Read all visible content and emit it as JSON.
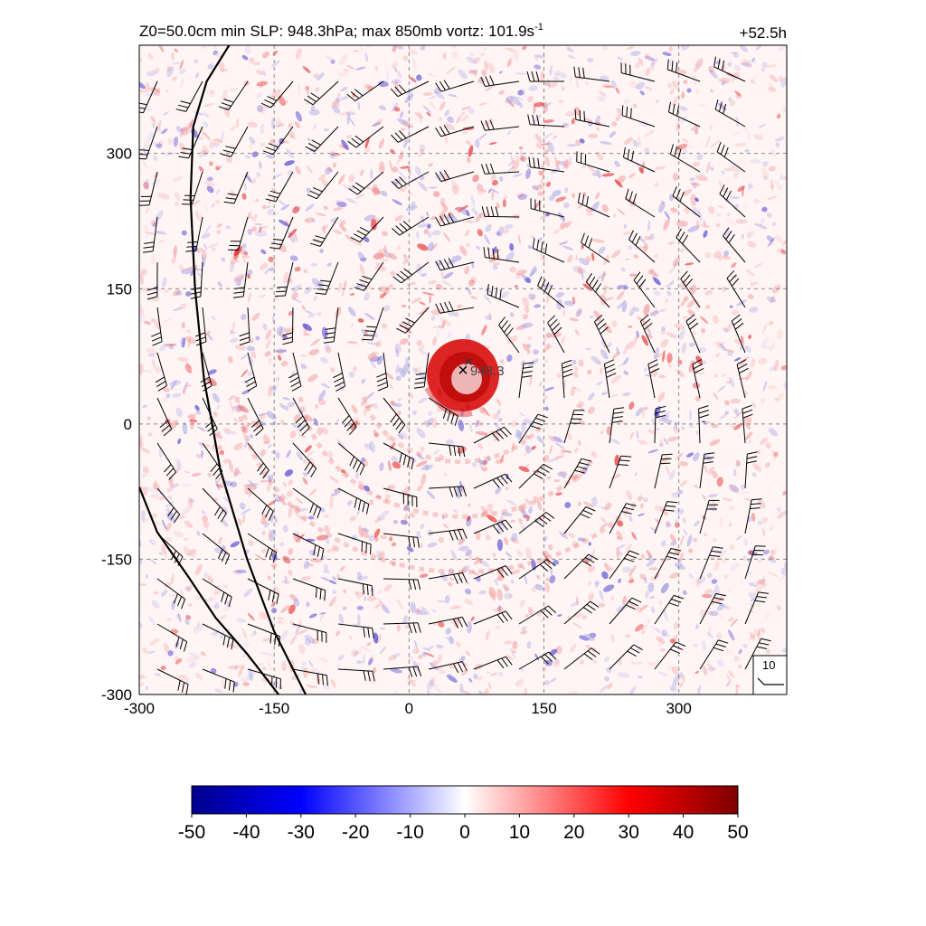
{
  "chart_data": {
    "type": "heatmap",
    "title": "Z0=50.0cm  min SLP: 948.3hPa; max 850mb vortz: 101.9s",
    "title_superscript": "-1",
    "time_label": "+52.5h",
    "xlim": [
      -300,
      420
    ],
    "ylim": [
      -300,
      420
    ],
    "x_ticks": [
      -300,
      -150,
      0,
      150,
      300
    ],
    "y_ticks": [
      -300,
      -150,
      0,
      150,
      300
    ],
    "grid": true,
    "center_marker": {
      "symbol": "×",
      "x": 60,
      "y": 60,
      "label": "948.3"
    },
    "secondary_marker": {
      "symbol": "×",
      "x": 66,
      "y": 70
    },
    "reference_barb": {
      "label": "10"
    },
    "colorbar": {
      "min": -50,
      "max": 50,
      "ticks": [
        -50,
        -40,
        -30,
        -20,
        -10,
        0,
        10,
        20,
        30,
        40,
        50
      ],
      "colors": [
        "#00008b",
        "#0000ff",
        "#ffffff",
        "#ff0000",
        "#7f0000"
      ]
    },
    "contour_lines": [
      [
        [
          -200,
          420
        ],
        [
          -225,
          380
        ],
        [
          -240,
          330
        ],
        [
          -243,
          250
        ],
        [
          -238,
          150
        ],
        [
          -228,
          50
        ],
        [
          -210,
          -50
        ],
        [
          -180,
          -150
        ],
        [
          -150,
          -230
        ],
        [
          -115,
          -300
        ]
      ],
      [
        [
          -300,
          -70
        ],
        [
          -280,
          -120
        ],
        [
          -245,
          -170
        ],
        [
          -215,
          -215
        ],
        [
          -180,
          -255
        ],
        [
          -145,
          -300
        ]
      ]
    ],
    "storm_center": {
      "x": 60,
      "y": 60
    }
  }
}
